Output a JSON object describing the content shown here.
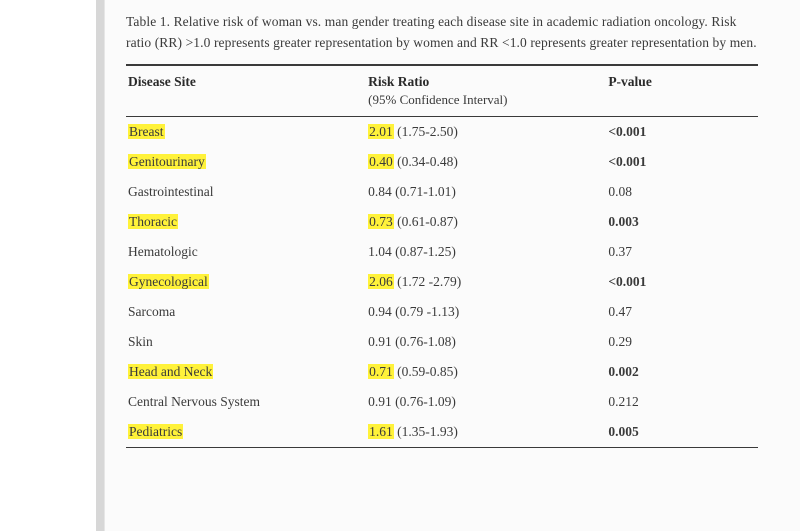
{
  "table": {
    "caption_prefix": "Table 1",
    "caption_text": ". Relative risk of woman vs. man gender treating each disease site in academic radiation oncology. Risk ratio (RR) >1.0 represents greater representation by women and RR <1.0 represents greater representation by men.",
    "columns": {
      "site": "Disease Site",
      "rr": "Risk Ratio",
      "rr_sub": "(95% Confidence Interval)",
      "p": "P-value"
    },
    "highlight_color": "#fff23a",
    "rows": [
      {
        "site": "Breast",
        "rr": "2.01",
        "ci": "(1.75-2.50)",
        "p": "<0.001",
        "site_hl": true,
        "rr_hl": true,
        "p_bold": true
      },
      {
        "site": "Genitourinary",
        "rr": "0.40",
        "ci": "(0.34-0.48)",
        "p": "<0.001",
        "site_hl": true,
        "rr_hl": true,
        "p_bold": true
      },
      {
        "site": "Gastrointestinal",
        "rr": "0.84",
        "ci": "(0.71-1.01)",
        "p": "0.08",
        "site_hl": false,
        "rr_hl": false,
        "p_bold": false
      },
      {
        "site": "Thoracic",
        "rr": "0.73",
        "ci": "(0.61-0.87)",
        "p": "0.003",
        "site_hl": true,
        "rr_hl": true,
        "p_bold": true
      },
      {
        "site": "Hematologic",
        "rr": "1.04",
        "ci": "(0.87-1.25)",
        "p": "0.37",
        "site_hl": false,
        "rr_hl": false,
        "p_bold": false
      },
      {
        "site": "Gynecological",
        "rr": "2.06",
        "ci": "(1.72 -2.79)",
        "p": "<0.001",
        "site_hl": true,
        "rr_hl": true,
        "p_bold": true
      },
      {
        "site": "Sarcoma",
        "rr": "0.94",
        "ci": "(0.79 -1.13)",
        "p": "0.47",
        "site_hl": false,
        "rr_hl": false,
        "p_bold": false
      },
      {
        "site": "Skin",
        "rr": "0.91",
        "ci": "(0.76-1.08)",
        "p": "0.29",
        "site_hl": false,
        "rr_hl": false,
        "p_bold": false
      },
      {
        "site": "Head and Neck",
        "rr": "0.71",
        "ci": "(0.59-0.85)",
        "p": "0.002",
        "site_hl": true,
        "rr_hl": true,
        "p_bold": true
      },
      {
        "site": "Central Nervous System",
        "rr": "0.91",
        "ci": "(0.76-1.09)",
        "p": "0.212",
        "site_hl": false,
        "rr_hl": false,
        "p_bold": false
      },
      {
        "site": "Pediatrics",
        "rr": "1.61",
        "ci": "(1.35-1.93)",
        "p": "0.005",
        "site_hl": true,
        "rr_hl": true,
        "p_bold": true
      }
    ]
  },
  "colors": {
    "text": "#2b2b2b",
    "rule": "#d7d7d7",
    "page_bg": "#fbfbfb",
    "border": "#3a3a3a"
  },
  "fontsize": {
    "caption": 13.5,
    "header": 13.5,
    "body": 13.5
  }
}
